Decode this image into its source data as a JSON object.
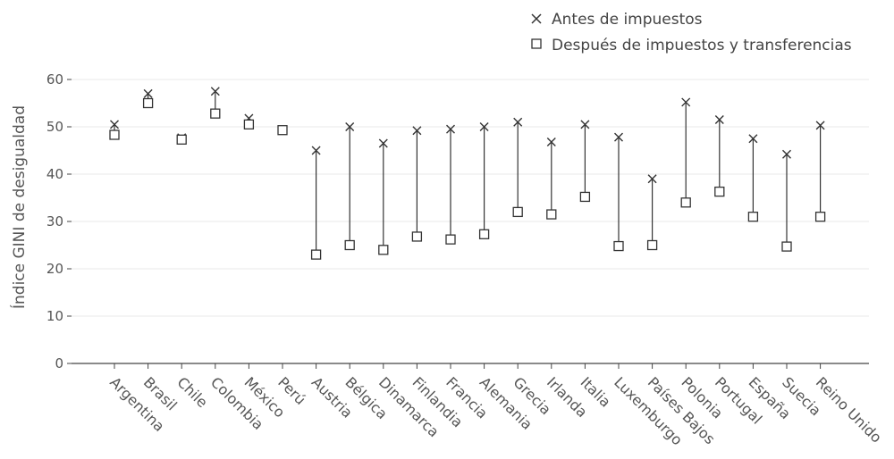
{
  "chart_data": {
    "type": "scatter",
    "title": "",
    "xlabel": "",
    "ylabel": "Índice GINI de desigualdad",
    "ylim": [
      0,
      60
    ],
    "yticks": [
      0,
      10,
      20,
      30,
      40,
      50,
      60
    ],
    "grid": true,
    "legend_position": "top-right",
    "categories": [
      "Argentina",
      "Brasil",
      "Chile",
      "Colombia",
      "México",
      "Perú",
      "Austria",
      "Bélgica",
      "Dinamarca",
      "Finlandia",
      "Francia",
      "Alemania",
      "Grecia",
      "Irlanda",
      "Italia",
      "Luxemburgo",
      "Países Bajos",
      "Polonia",
      "Portugal",
      "España",
      "Suecia",
      "Reino Unido"
    ],
    "series": [
      {
        "name": "Antes de impuestos",
        "marker": "x",
        "values": [
          50.5,
          57,
          47.7,
          57.5,
          51.8,
          49.3,
          45,
          50,
          46.5,
          49.2,
          49.5,
          50,
          51,
          46.8,
          50.5,
          47.8,
          39,
          55.2,
          51.5,
          47.5,
          44.2,
          50.3
        ]
      },
      {
        "name": "Después de impuestos y transferencias",
        "marker": "square",
        "values": [
          48.3,
          55,
          47.3,
          52.8,
          50.5,
          49.3,
          23,
          25,
          24,
          26.8,
          26.2,
          27.3,
          32,
          31.5,
          35.2,
          24.8,
          25,
          34,
          36.3,
          31,
          24.7,
          31
        ]
      }
    ],
    "colors": {
      "marker": "#333333",
      "line": "#333333",
      "grid": "#e8e8e8",
      "axis": "#444444"
    }
  }
}
